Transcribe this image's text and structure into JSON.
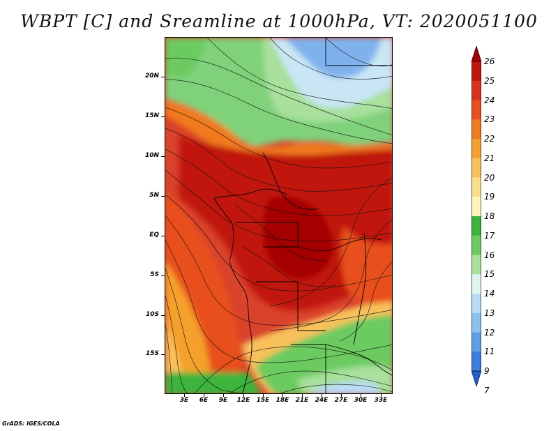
{
  "title": "WBPT [C] and Sreamline at 1000hPa, VT: 2020051100",
  "credit": "GrADS: IGES/COLA",
  "map": {
    "variable": "WBPT [C]",
    "level": "1000hPa",
    "valid_time": "2020051100",
    "lat_labels": [
      "20N",
      "15N",
      "10N",
      "5N",
      "EQ",
      "5S",
      "10S",
      "15S"
    ],
    "lon_labels": [
      "3E",
      "6E",
      "9E",
      "12E",
      "15E",
      "18E",
      "21E",
      "24E",
      "27E",
      "30E",
      "33E"
    ]
  },
  "colorbar": {
    "labels": [
      "26",
      "25",
      "24",
      "23",
      "22",
      "21",
      "20",
      "19",
      "18",
      "17",
      "16",
      "15",
      "14",
      "13",
      "12",
      "11",
      "9",
      "7"
    ],
    "colors": [
      "#a50000",
      "#c0140c",
      "#d8321c",
      "#e8501e",
      "#f07a1e",
      "#f5a02c",
      "#f8c05a",
      "#fbe08c",
      "#fff5b8",
      "#3cb43c",
      "#6ccb60",
      "#a8e09c",
      "#dff5ee",
      "#b9dcf5",
      "#8cc0ee",
      "#5f9fe6",
      "#3c7fde",
      "#2060d0"
    ]
  }
}
